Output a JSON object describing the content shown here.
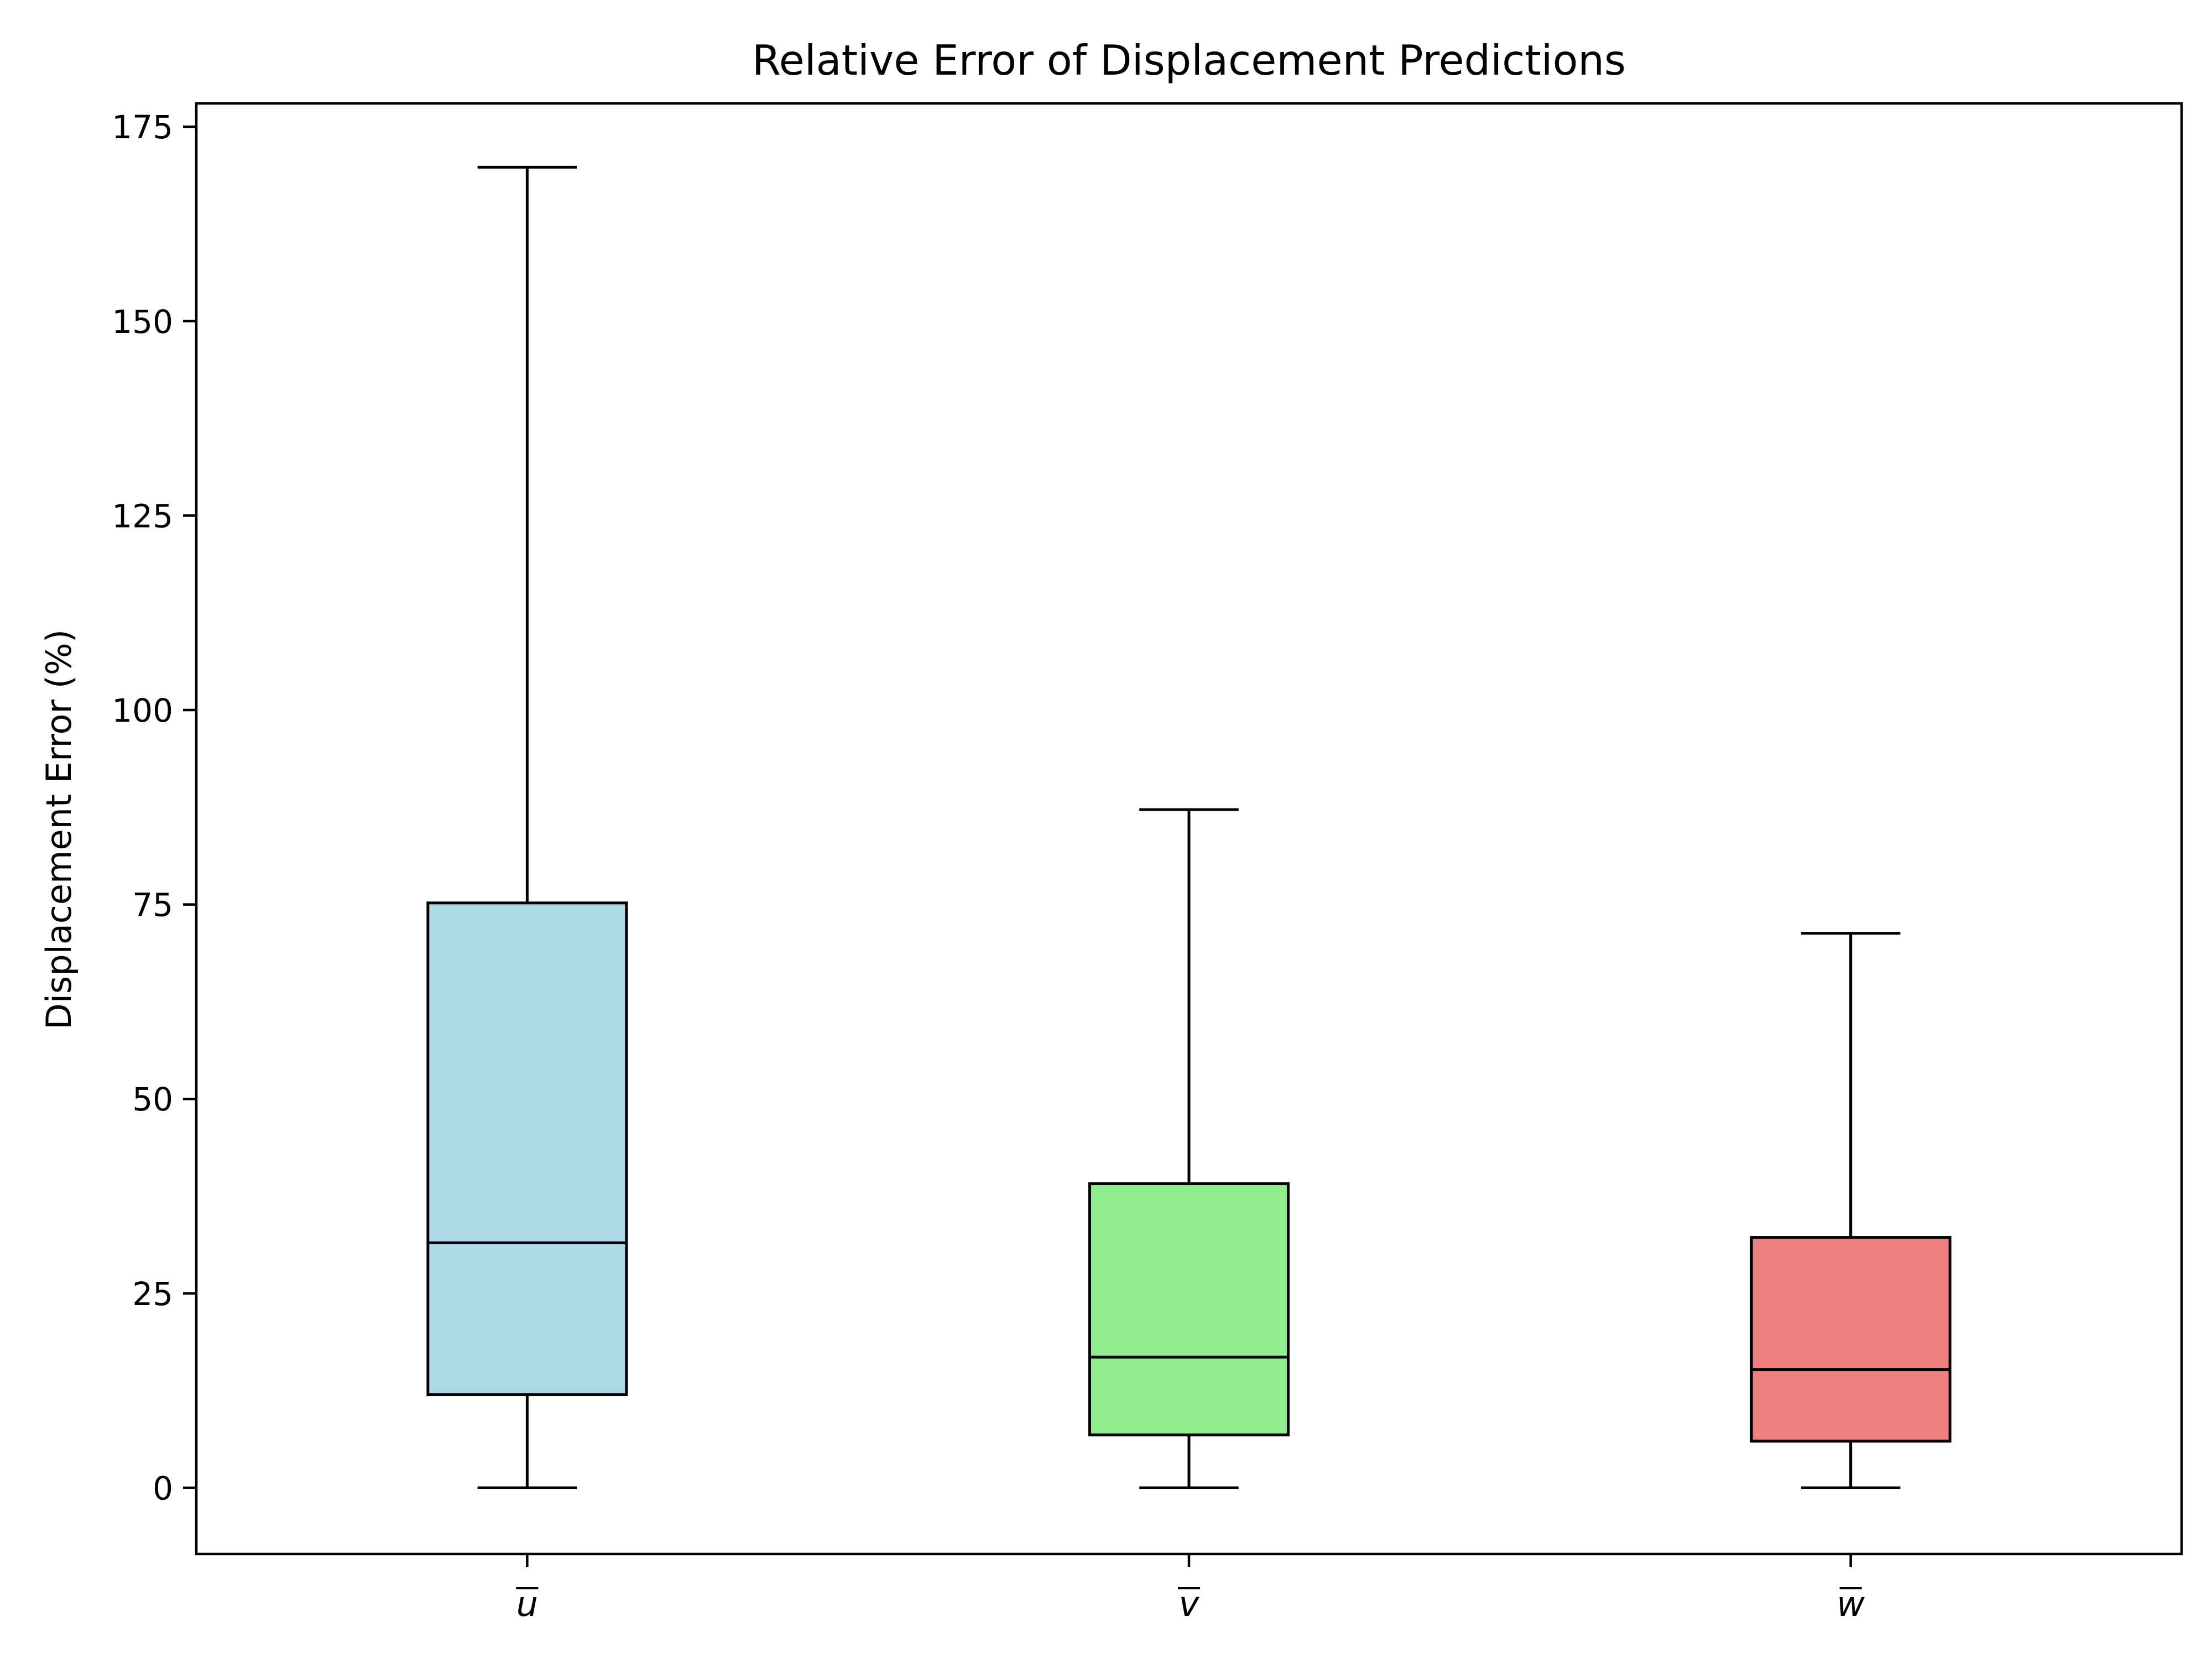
{
  "chart_data": {
    "type": "box",
    "title": "Relative Error of Displacement Predictions",
    "xlabel": "",
    "ylabel": "Displacement Error (%)",
    "ylim": [
      -8.5,
      178
    ],
    "yticks": [
      0,
      25,
      50,
      75,
      100,
      125,
      150,
      175
    ],
    "grid": false,
    "legend": "none",
    "categories": [
      "u",
      "v",
      "w"
    ],
    "boxes": [
      {
        "label": "u",
        "whisker_low": 0,
        "q1": 12,
        "median": 31.5,
        "q3": 75.2,
        "whisker_high": 169.8,
        "color": "#add8e6"
      },
      {
        "label": "v",
        "whisker_low": 0,
        "q1": 6.8,
        "median": 16.8,
        "q3": 39.1,
        "whisker_high": 87.2,
        "color": "#90ee90"
      },
      {
        "label": "w",
        "whisker_low": 0,
        "q1": 6,
        "median": 15.2,
        "q3": 32.2,
        "whisker_high": 71.3,
        "color": "#f08080"
      }
    ]
  }
}
